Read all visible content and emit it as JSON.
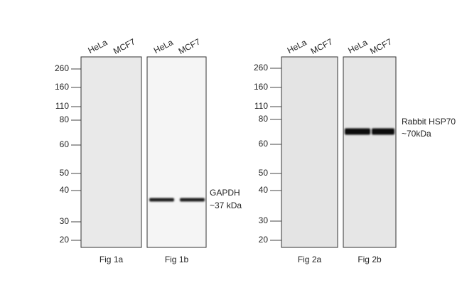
{
  "panels": [
    {
      "markers": [
        260,
        160,
        110,
        80,
        60,
        50,
        40,
        30,
        20
      ],
      "blots": [
        {
          "caption": "Fig 1a",
          "lanes": [
            "HeLa",
            "MCF7"
          ]
        },
        {
          "caption": "Fig 1b",
          "lanes": [
            "HeLa",
            "MCF7"
          ],
          "annotation": [
            "GAPDH",
            "~37 kDa"
          ]
        }
      ]
    },
    {
      "markers": [
        260,
        160,
        110,
        80,
        60,
        50,
        40,
        30,
        20
      ],
      "blots": [
        {
          "caption": "Fig 2a",
          "lanes": [
            "HeLa",
            "MCF7"
          ]
        },
        {
          "caption": "Fig 2b",
          "lanes": [
            "HeLa",
            "MCF7"
          ],
          "annotation": [
            "Rabbit HSP70",
            "~70kDa"
          ]
        }
      ]
    }
  ]
}
